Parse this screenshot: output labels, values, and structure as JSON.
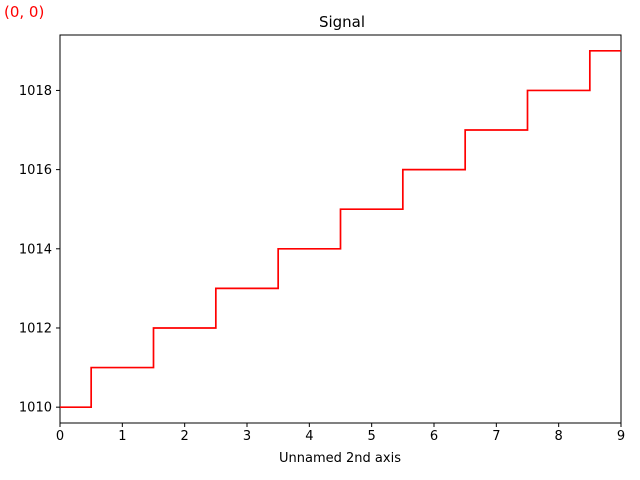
{
  "coordinate_readout": {
    "text": "(0, 0)",
    "color": "#ff0000"
  },
  "chart_data": {
    "type": "line",
    "drawstyle": "steps-mid",
    "title": "Signal",
    "xlabel": "Unnamed 2nd axis",
    "ylabel": "",
    "xlim": [
      0,
      9
    ],
    "ylim": [
      1009.6,
      1019.4
    ],
    "xticks": [
      0,
      1,
      2,
      3,
      4,
      5,
      6,
      7,
      8,
      9
    ],
    "xtick_labels": [
      "0",
      "1",
      "2",
      "3",
      "4",
      "5",
      "6",
      "7",
      "8",
      "9"
    ],
    "yticks": [
      1010,
      1012,
      1014,
      1016,
      1018
    ],
    "ytick_labels": [
      "1010",
      "1012",
      "1014",
      "1016",
      "1018"
    ],
    "grid": false,
    "series": [
      {
        "color": "#ff0000",
        "x": [
          0,
          1,
          2,
          3,
          4,
          5,
          6,
          7,
          8,
          9
        ],
        "y": [
          1010,
          1011,
          1012,
          1013,
          1014,
          1015,
          1016,
          1017,
          1018,
          1019
        ]
      }
    ]
  }
}
